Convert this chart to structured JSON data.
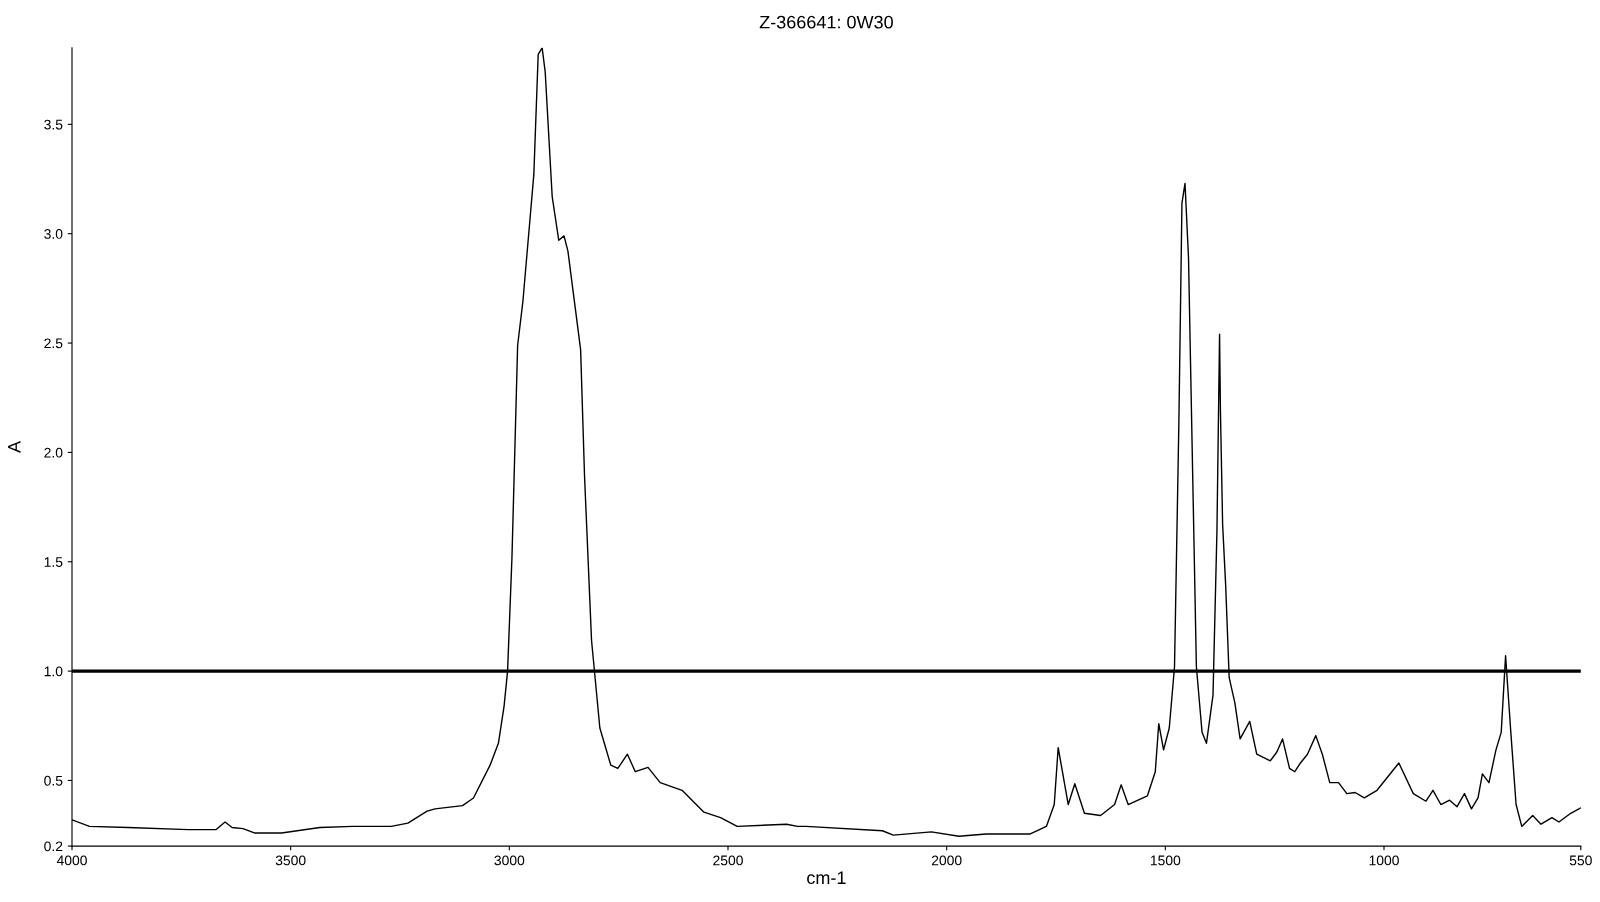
{
  "chart_data": {
    "type": "line",
    "title": "Z-366641: 0W30",
    "xlabel": "cm-1",
    "ylabel": "A",
    "xlim": [
      4000,
      550
    ],
    "xticks": [
      4000,
      3500,
      3000,
      2500,
      2000,
      1500,
      1000,
      550
    ],
    "ylim": [
      0.2,
      3.85
    ],
    "yticks": [
      {
        "value": 0.2,
        "label": "0.2"
      },
      {
        "value": 0.5,
        "label": "0.5"
      },
      {
        "value": 1.0,
        "label": "1.0"
      },
      {
        "value": 1.5,
        "label": "1.5"
      },
      {
        "value": 2.0,
        "label": "2.0"
      },
      {
        "value": 2.5,
        "label": "2.5"
      },
      {
        "value": 3.0,
        "label": "3.0"
      },
      {
        "value": 3.5,
        "label": "3.5"
      }
    ],
    "grid": false,
    "legend": false,
    "marker": "none",
    "line_style": "solid",
    "ref_lines": [
      {
        "axis": "y",
        "value": 1.0,
        "color": "#000000",
        "line_style": "solid"
      }
    ],
    "series": [
      {
        "color": "#000000",
        "x": [
          4000,
          3960,
          3872,
          3734,
          3671,
          3650,
          3634,
          3609,
          3583,
          3521,
          3433,
          3358,
          3270,
          3232,
          3188,
          3170,
          3107,
          3082,
          3044,
          3025,
          3012,
          3004,
          2994,
          2981,
          2969,
          2944,
          2934,
          2925,
          2918,
          2902,
          2887,
          2875,
          2866,
          2837,
          2828,
          2812,
          2793,
          2768,
          2752,
          2730,
          2712,
          2683,
          2655,
          2605,
          2555,
          2517,
          2479,
          2366,
          2341,
          2322,
          2147,
          2122,
          2035,
          1972,
          1910,
          1810,
          1772,
          1754,
          1745,
          1722,
          1707,
          1685,
          1648,
          1616,
          1601,
          1585,
          1541,
          1523,
          1515,
          1504,
          1491,
          1479,
          1469,
          1462,
          1455,
          1447,
          1429,
          1416,
          1406,
          1391,
          1382,
          1376,
          1374,
          1369,
          1362,
          1354,
          1341,
          1329,
          1307,
          1291,
          1260,
          1245,
          1232,
          1216,
          1204,
          1191,
          1175,
          1156,
          1141,
          1124,
          1104,
          1085,
          1066,
          1045,
          1016,
          966,
          933,
          904,
          888,
          870,
          850,
          833,
          816,
          800,
          785,
          775,
          760,
          744,
          732,
          722,
          710,
          698,
          685,
          660,
          641,
          616,
          600,
          573,
          550
        ],
        "values": [
          0.32,
          0.29,
          0.285,
          0.275,
          0.275,
          0.31,
          0.285,
          0.28,
          0.26,
          0.26,
          0.285,
          0.29,
          0.29,
          0.305,
          0.36,
          0.37,
          0.385,
          0.42,
          0.57,
          0.67,
          0.84,
          1.0,
          1.52,
          2.49,
          2.69,
          3.27,
          3.82,
          3.85,
          3.74,
          3.17,
          2.97,
          2.99,
          2.92,
          2.47,
          1.89,
          1.14,
          0.74,
          0.57,
          0.555,
          0.62,
          0.54,
          0.56,
          0.49,
          0.455,
          0.355,
          0.33,
          0.29,
          0.3,
          0.29,
          0.29,
          0.27,
          0.25,
          0.265,
          0.245,
          0.255,
          0.255,
          0.29,
          0.39,
          0.65,
          0.39,
          0.485,
          0.35,
          0.34,
          0.39,
          0.48,
          0.39,
          0.43,
          0.54,
          0.76,
          0.64,
          0.74,
          1.02,
          2.14,
          3.14,
          3.23,
          2.89,
          1.02,
          0.72,
          0.67,
          0.89,
          1.64,
          2.54,
          2.19,
          1.67,
          1.39,
          0.97,
          0.855,
          0.69,
          0.77,
          0.62,
          0.59,
          0.63,
          0.69,
          0.555,
          0.54,
          0.58,
          0.62,
          0.705,
          0.62,
          0.49,
          0.49,
          0.44,
          0.445,
          0.42,
          0.455,
          0.58,
          0.44,
          0.405,
          0.455,
          0.39,
          0.41,
          0.38,
          0.44,
          0.37,
          0.42,
          0.53,
          0.49,
          0.64,
          0.72,
          1.07,
          0.72,
          0.39,
          0.29,
          0.34,
          0.3,
          0.33,
          0.31,
          0.35,
          0.375
        ]
      }
    ]
  }
}
